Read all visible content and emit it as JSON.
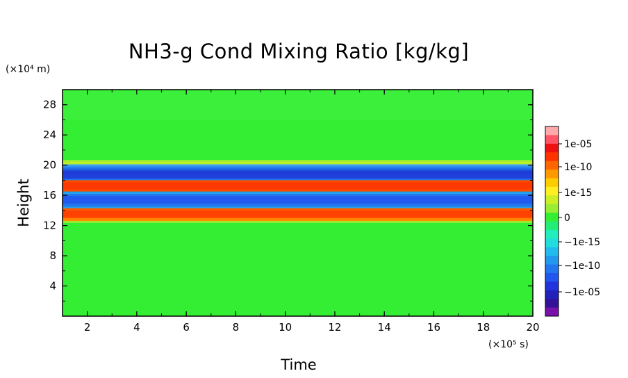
{
  "chart_data": {
    "type": "heatmap",
    "title": "NH3-g Cond Mixing Ratio [kg/kg]",
    "xlabel": "Time",
    "ylabel": "Height",
    "x_unit": "(×10⁵ s)",
    "y_unit": "(×10⁴ m)",
    "xlim": [
      1,
      20
    ],
    "ylim": [
      0,
      30
    ],
    "x_ticks": [
      "2",
      "4",
      "6",
      "8",
      "10",
      "12",
      "14",
      "16",
      "18",
      "20"
    ],
    "y_ticks": [
      "4",
      "8",
      "12",
      "16",
      "20",
      "24",
      "28"
    ],
    "bands": [
      {
        "y_range": [
          0,
          12.5
        ],
        "level": "0"
      },
      {
        "y_range": [
          12.5,
          14.3
        ],
        "level": "positive (~1e-06 to 1e-05)"
      },
      {
        "y_range": [
          14.3,
          16.5
        ],
        "level": "negative (~-1e-08 to -1e-05)"
      },
      {
        "y_range": [
          16.5,
          18.0
        ],
        "level": "positive (~1e-06 to 1e-05)"
      },
      {
        "y_range": [
          18.0,
          20.3
        ],
        "level": "negative (~-1e-08 to -1e-05)"
      },
      {
        "y_range": [
          20.3,
          30
        ],
        "level": "0"
      }
    ],
    "colorbar": {
      "labels": [
        "1e-05",
        "1e-10",
        "1e-15",
        "0",
        "−1e-15",
        "−1e-10",
        "−1e-05"
      ],
      "colors": [
        "#ffaaaa",
        "#ff5566",
        "#ee1111",
        "#ff3300",
        "#ff6600",
        "#ff9900",
        "#ffcc00",
        "#ffee22",
        "#ccee22",
        "#99ee33",
        "#33ee33",
        "#22ee77",
        "#22eebb",
        "#22dddd",
        "#22bbee",
        "#2299ee",
        "#2277ee",
        "#2255ee",
        "#2233dd",
        "#2222bb",
        "#331199",
        "#7711aa"
      ]
    },
    "grid": false,
    "legend": "colorbar-right"
  }
}
